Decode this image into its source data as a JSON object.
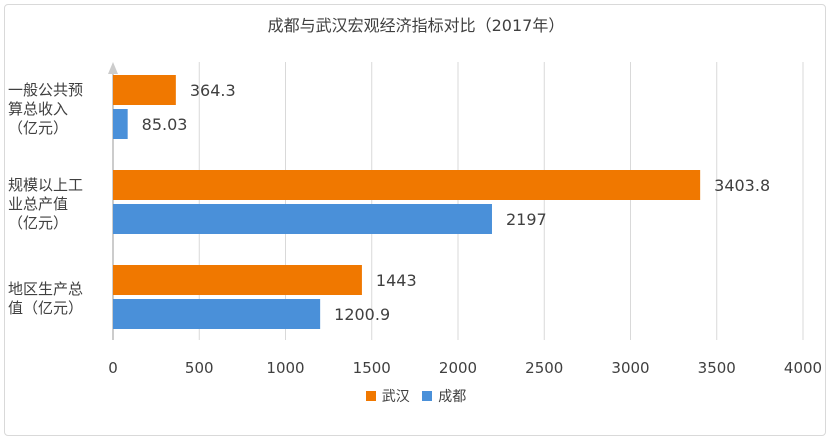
{
  "chart_data": {
    "type": "bar",
    "orientation": "horizontal",
    "title": "成都与武汉宏观经济指标对比（2017年）",
    "categories": [
      "一般公共预\n算总收入\n（亿元）",
      "规模以上工\n业总产值\n（亿元）",
      "地区生产总\n值（亿元）"
    ],
    "series": [
      {
        "name": "武汉",
        "color": "#f07800",
        "values": [
          364.3,
          3403.8,
          1443
        ]
      },
      {
        "name": "成都",
        "color": "#4a90d9",
        "values": [
          85.03,
          2197,
          1200.9
        ]
      }
    ],
    "value_labels": [
      [
        "364.3",
        "3403.8",
        "1443"
      ],
      [
        "85.03",
        "2197",
        "1200.9"
      ]
    ],
    "xlim": [
      0,
      4000
    ],
    "xticks": [
      "0",
      "500",
      "1000",
      "1500",
      "2000",
      "2500",
      "3000",
      "3500",
      "4000"
    ],
    "grid": true,
    "legend_position": "bottom"
  }
}
